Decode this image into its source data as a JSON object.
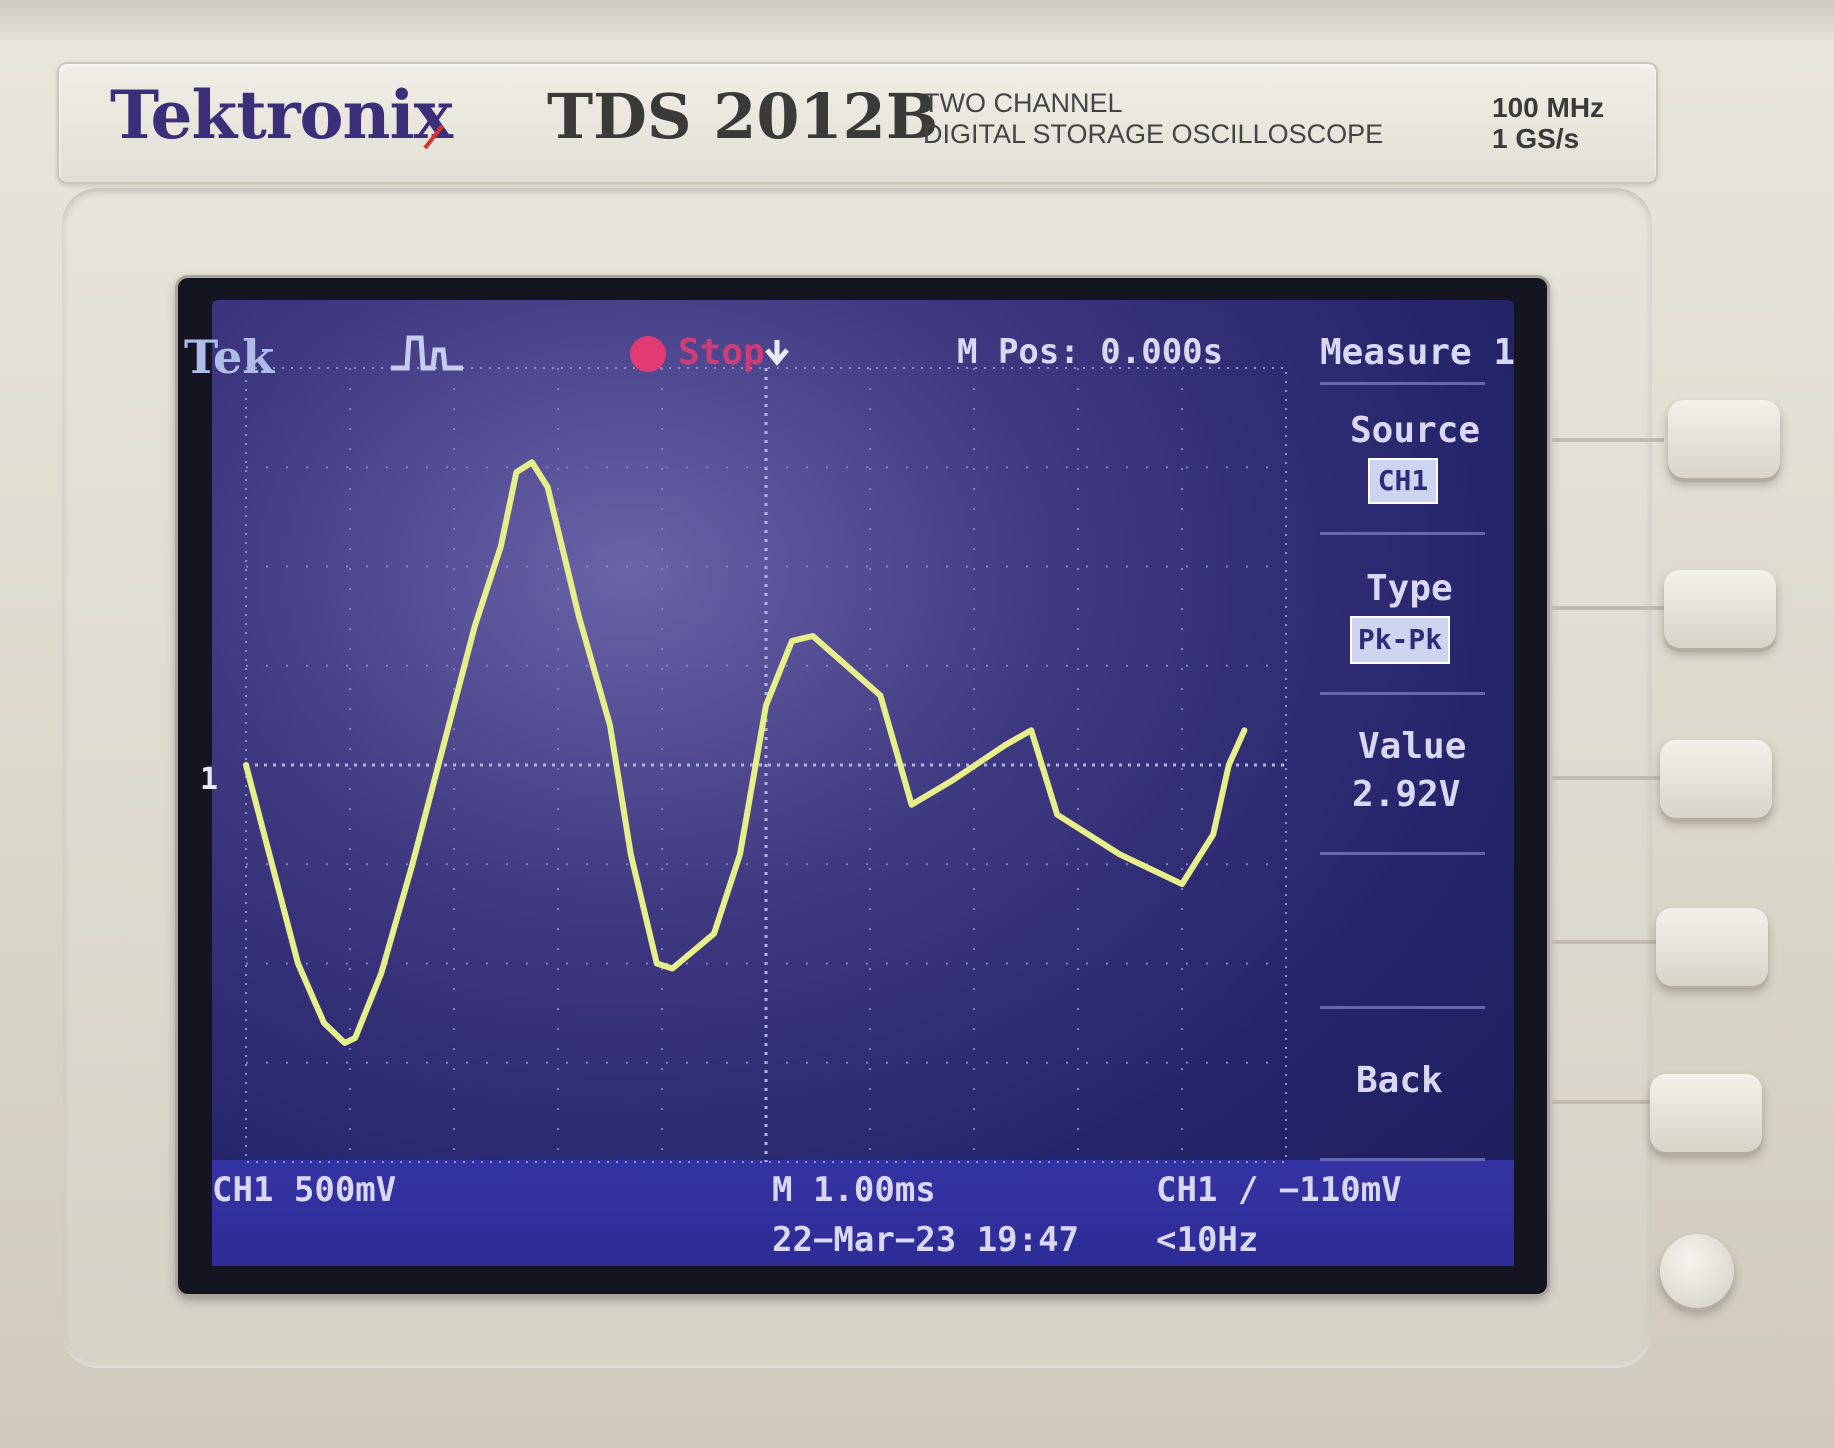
{
  "device": {
    "brand": "Tektronix",
    "model": "TDS 2012B",
    "description_line1": "TWO  CHANNEL",
    "description_line2": "DIGITAL STORAGE OSCILLOSCOPE",
    "bandwidth": "100 MHz",
    "sample_rate": "1 GS/s"
  },
  "screen": {
    "header": {
      "tek": "Tek",
      "acq_icon": "trigger-pulse-icon",
      "state": "Stop",
      "m_pos": "M Pos: 0.000s"
    },
    "menu": {
      "title": "Measure 1",
      "source_label": "Source",
      "source_value": "CH1",
      "type_label": "Type",
      "type_value": "Pk-Pk",
      "value_label": "Value",
      "value_value": "2.92V",
      "back_label": "Back"
    },
    "footer": {
      "ch1_scale": "CH1  500mV",
      "timebase": "M 1.00ms",
      "trigger": "CH1 ∕ −110mV",
      "datetime": "22−Mar−23 19:47",
      "frequency": "<10Hz"
    },
    "ch1_marker": "1",
    "trace_color": "#e6f08a",
    "waveform_divisions": [
      [
        0.0,
        0.0
      ],
      [
        0.25,
        -1.0
      ],
      [
        0.5,
        -2.0
      ],
      [
        0.75,
        -2.6
      ],
      [
        0.95,
        -2.8
      ],
      [
        1.05,
        -2.75
      ],
      [
        1.3,
        -2.1
      ],
      [
        1.6,
        -1.0
      ],
      [
        1.9,
        0.2
      ],
      [
        2.2,
        1.4
      ],
      [
        2.45,
        2.2
      ],
      [
        2.6,
        2.95
      ],
      [
        2.75,
        3.05
      ],
      [
        2.9,
        2.8
      ],
      [
        3.2,
        1.5
      ],
      [
        3.5,
        0.4
      ],
      [
        3.7,
        -0.9
      ],
      [
        3.95,
        -2.0
      ],
      [
        4.1,
        -2.05
      ],
      [
        4.5,
        -1.7
      ],
      [
        4.75,
        -0.9
      ],
      [
        5.0,
        0.6
      ],
      [
        5.25,
        1.25
      ],
      [
        5.45,
        1.3
      ],
      [
        6.1,
        0.7
      ],
      [
        6.4,
        -0.4
      ],
      [
        6.8,
        -0.15
      ],
      [
        7.3,
        0.2
      ],
      [
        7.55,
        0.35
      ],
      [
        7.8,
        -0.5
      ],
      [
        8.4,
        -0.9
      ],
      [
        9.0,
        -1.2
      ],
      [
        9.3,
        -0.7
      ],
      [
        9.45,
        0.0
      ],
      [
        9.6,
        0.35
      ]
    ]
  },
  "colors": {
    "screen_text": "#d9d8f2",
    "stop_red": "#e23a73",
    "logo_purple": "#3b2f7a"
  }
}
